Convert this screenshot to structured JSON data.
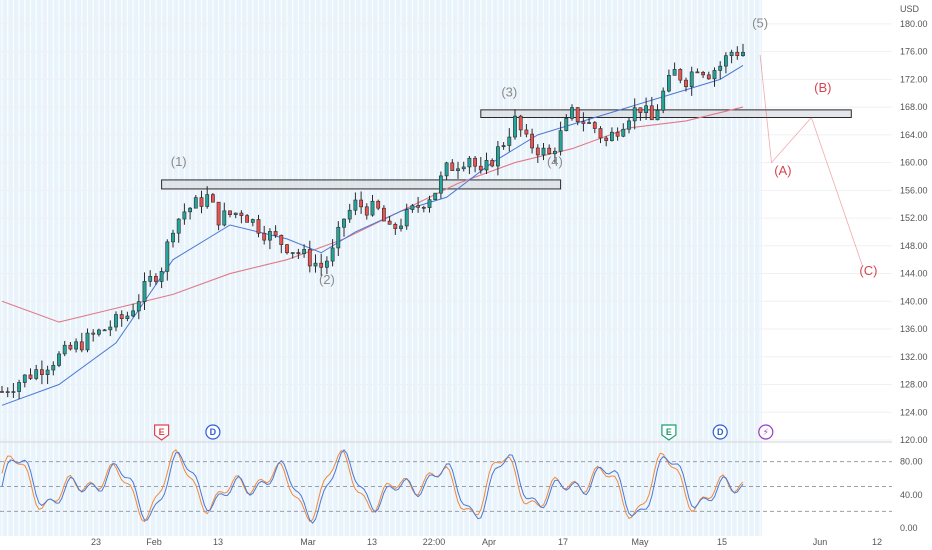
{
  "currency_label": "USD",
  "price_axis": [
    "180.00",
    "176.00",
    "172.00",
    "168.00",
    "164.00",
    "160.00",
    "156.00",
    "152.00",
    "148.00",
    "144.00",
    "140.00",
    "136.00",
    "132.00",
    "128.00",
    "124.00",
    "120.00"
  ],
  "osc_axis": [
    "80.00",
    "40.00",
    "0.00"
  ],
  "time_axis": [
    "23",
    "Feb",
    "13",
    "Mar",
    "13",
    "22:00",
    "Apr",
    "17",
    "May",
    "15",
    "Jun",
    "12"
  ],
  "wave_labels": {
    "w1": "(1)",
    "w2": "(2)",
    "w3": "(3)",
    "w4": "(4)",
    "w5": "(5)",
    "wA": "(A)",
    "wB": "(B)",
    "wC": "(C)"
  },
  "events": {
    "earnings": "E",
    "dividend": "D",
    "split": "⚡"
  },
  "colors": {
    "up": "#26a69a",
    "down": "#ef5350",
    "candle": "#2a2a2a",
    "sma_fast": "#4a78d6",
    "sma_slow": "#e07a88",
    "wave_impulse": "#8a8a8a",
    "wave_corrective": "#d6454f",
    "stoch_k": "#4a78d6",
    "stoch_d": "#f08a3c",
    "zone_fill": "#d9dde3",
    "zone_stroke": "#2a2a2a",
    "event_earn": "#e0454f",
    "event_div": "#2e5fd6",
    "event_earn2": "#1e9e6e",
    "event_split": "#9c37c4",
    "weekend_band": "#e9f3fb"
  },
  "chart_data": {
    "type": "candlestick",
    "ylim": [
      120,
      182
    ],
    "x_index_range": [
      0,
      136
    ],
    "projection_x": [
      0,
      136
    ],
    "price_path": [
      [
        0,
        127
      ],
      [
        6,
        130
      ],
      [
        12,
        133
      ],
      [
        18,
        136
      ],
      [
        22,
        138
      ],
      [
        26,
        143
      ],
      [
        28,
        145
      ],
      [
        30,
        151
      ],
      [
        32,
        153
      ],
      [
        36,
        155
      ],
      [
        38,
        152
      ],
      [
        42,
        153
      ],
      [
        46,
        150
      ],
      [
        50,
        148
      ],
      [
        54,
        146
      ],
      [
        56,
        145
      ],
      [
        58,
        147
      ],
      [
        60,
        152
      ],
      [
        62,
        154
      ],
      [
        66,
        153
      ],
      [
        68,
        150
      ],
      [
        72,
        153
      ],
      [
        76,
        156
      ],
      [
        78,
        159
      ],
      [
        82,
        161
      ],
      [
        84,
        158
      ],
      [
        88,
        163
      ],
      [
        90,
        166
      ],
      [
        92,
        163
      ],
      [
        96,
        161
      ],
      [
        98,
        164
      ],
      [
        100,
        167
      ],
      [
        104,
        165
      ],
      [
        106,
        163
      ],
      [
        110,
        167
      ],
      [
        112,
        168
      ],
      [
        114,
        166
      ],
      [
        116,
        170
      ],
      [
        118,
        173
      ],
      [
        120,
        172
      ],
      [
        122,
        174
      ],
      [
        124,
        173
      ],
      [
        126,
        174
      ],
      [
        128,
        176
      ],
      [
        130,
        176
      ]
    ],
    "sma_fast_path": [
      [
        0,
        125
      ],
      [
        10,
        128
      ],
      [
        20,
        134
      ],
      [
        30,
        146
      ],
      [
        40,
        151
      ],
      [
        50,
        149
      ],
      [
        56,
        147
      ],
      [
        62,
        150
      ],
      [
        70,
        153
      ],
      [
        78,
        155
      ],
      [
        86,
        160
      ],
      [
        94,
        164
      ],
      [
        102,
        166
      ],
      [
        110,
        168
      ],
      [
        118,
        170
      ],
      [
        126,
        172
      ],
      [
        130,
        174
      ]
    ],
    "sma_slow_path": [
      [
        0,
        140
      ],
      [
        10,
        137
      ],
      [
        20,
        139
      ],
      [
        30,
        141
      ],
      [
        40,
        144
      ],
      [
        50,
        146
      ],
      [
        60,
        149
      ],
      [
        70,
        153
      ],
      [
        80,
        157
      ],
      [
        90,
        160
      ],
      [
        100,
        162
      ],
      [
        110,
        165
      ],
      [
        120,
        166
      ],
      [
        130,
        168
      ]
    ],
    "zones": [
      {
        "x0": 28,
        "x1": 98,
        "y0": 156.2,
        "y1": 157.5
      },
      {
        "x0": 84,
        "x1": 149,
        "y0": 166.5,
        "y1": 167.6
      }
    ],
    "wave_points": {
      "w1": [
        31,
        159.5
      ],
      "w2": [
        57,
        142.5
      ],
      "w3": [
        89,
        169.5
      ],
      "w4": [
        97,
        159.5
      ],
      "w5": [
        133,
        179.5
      ],
      "wA": [
        137,
        158.2
      ],
      "wB": [
        144,
        170.2
      ],
      "wC": [
        152,
        143.8
      ]
    },
    "projection_path": [
      [
        133,
        175.5
      ],
      [
        135,
        160
      ],
      [
        142,
        166.5
      ],
      [
        151,
        145
      ]
    ],
    "events": [
      {
        "kind": "earnings",
        "x": 28,
        "y": 120.2
      },
      {
        "kind": "dividend",
        "x": 37,
        "y": 120.2
      },
      {
        "kind": "earnings2",
        "x": 117,
        "y": 120.2
      },
      {
        "kind": "dividend",
        "x": 126,
        "y": 120.2
      },
      {
        "kind": "split",
        "x": 134,
        "y": 120.2
      }
    ],
    "oscillator": {
      "type": "stochastic",
      "ylim": [
        0,
        100
      ],
      "levels": [
        80,
        50,
        20
      ]
    }
  }
}
